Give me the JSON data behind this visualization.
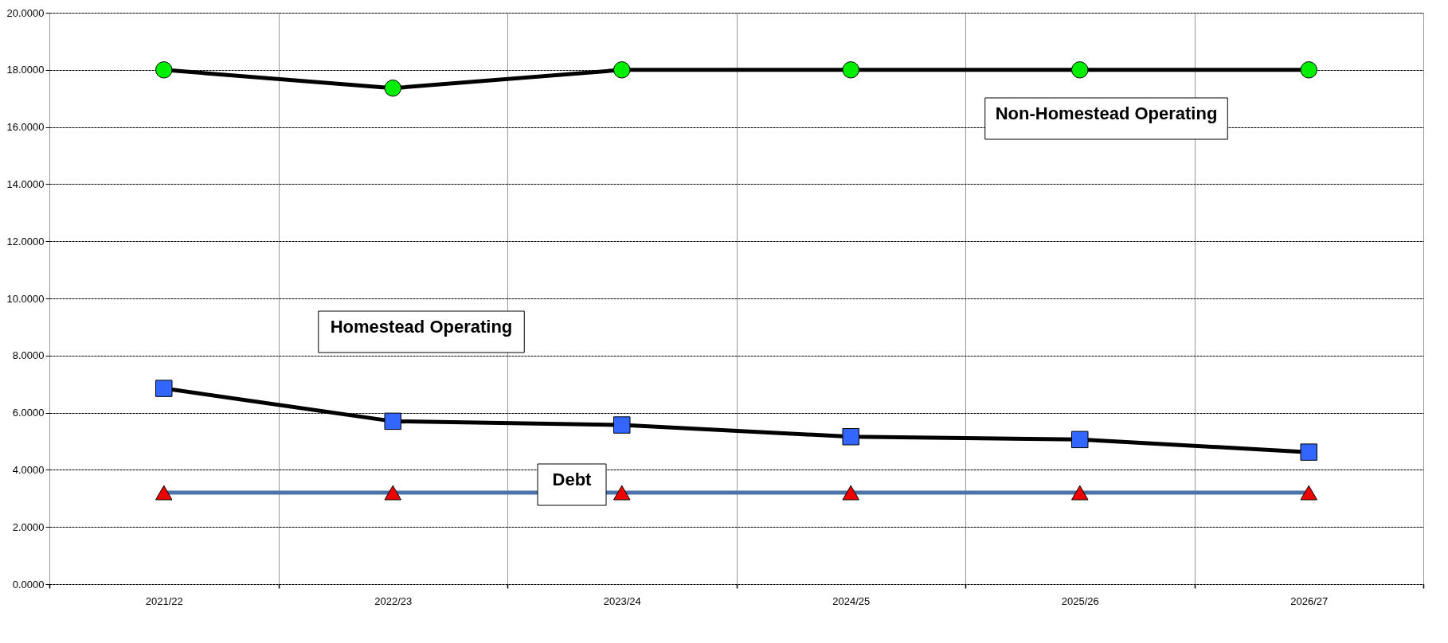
{
  "chart_data": {
    "type": "line",
    "categories": [
      "2021/22",
      "2022/23",
      "2023/24",
      "2024/25",
      "2025/26",
      "2026/27"
    ],
    "series": [
      {
        "name": "Non-Homestead Operating",
        "color": "#000000",
        "colors": [
          "#00ee00",
          "#00ee00",
          "#00ee00",
          "#00ee00",
          "#00ee00",
          "#00ee00"
        ],
        "marker": "circle",
        "values": [
          18.0,
          17.36,
          18.0,
          18.0,
          18.0,
          18.0
        ]
      },
      {
        "name": "Homestead Operating",
        "color": "#000000",
        "colors": [
          "#3366ff",
          "#3366ff",
          "#3366ff",
          "#3366ff",
          "#3366ff",
          "#3366ff"
        ],
        "marker": "square",
        "values": [
          6.85,
          5.7,
          5.57,
          5.16,
          5.06,
          4.62
        ]
      },
      {
        "name": "Debt",
        "color": "#4a73a8",
        "colors": [
          "#ee0000",
          "#ee0000",
          "#ee0000",
          "#ee0000",
          "#ee0000",
          "#ee0000"
        ],
        "marker": "triangle",
        "values": [
          3.2,
          3.2,
          3.2,
          3.2,
          3.2,
          3.2
        ]
      }
    ],
    "ylim": [
      0,
      20
    ],
    "yticks": [
      {
        "value": 0,
        "label": "0.0000"
      },
      {
        "value": 2,
        "label": "2.0000"
      },
      {
        "value": 4,
        "label": "4.0000"
      },
      {
        "value": 6,
        "label": "6.0000"
      },
      {
        "value": 8,
        "label": "8.0000"
      },
      {
        "value": 10,
        "label": "10.0000"
      },
      {
        "value": 12,
        "label": "12.0000"
      },
      {
        "value": 14,
        "label": "14.0000"
      },
      {
        "value": 16,
        "label": "16.0000"
      },
      {
        "value": 18,
        "label": "18.0000"
      },
      {
        "value": 20,
        "label": "20.0000"
      }
    ],
    "grid": true
  }
}
